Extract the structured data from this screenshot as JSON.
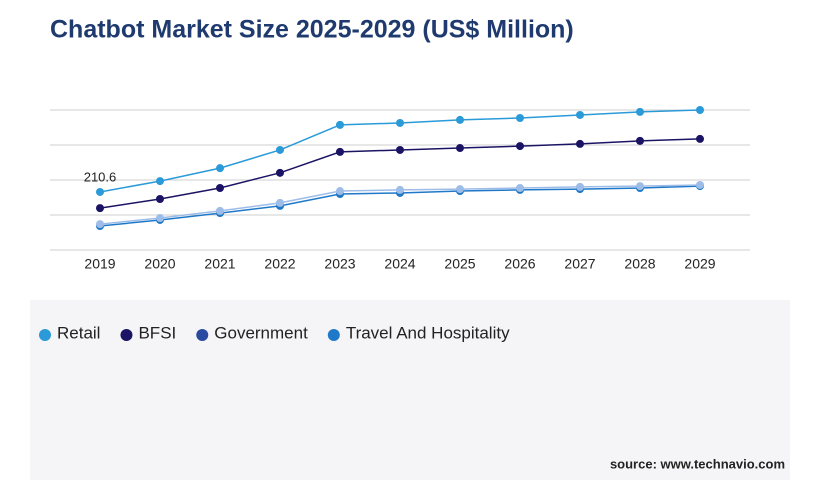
{
  "chart_data": {
    "type": "line",
    "title": "Chatbot Market Size 2025-2029 (US$ Million)",
    "source": "source: www.technavio.com",
    "categories": [
      "2019",
      "2020",
      "2021",
      "2022",
      "2023",
      "2024",
      "2025",
      "2026",
      "2027",
      "2028",
      "2029"
    ],
    "series": [
      {
        "name": "Retail",
        "color": "#2a9ad9",
        "values": [
          210.6,
          250,
          297,
          363,
          454,
          461,
          472,
          479,
          490,
          501,
          508
        ],
        "value_labels": [
          "210.6",
          null,
          null,
          null,
          null,
          null,
          null,
          null,
          null,
          null,
          null
        ]
      },
      {
        "name": "BFSI",
        "color": "#1b1464",
        "values": [
          152,
          185,
          225,
          280,
          356,
          363,
          370,
          377,
          385,
          396,
          403
        ]
      },
      {
        "name": "Government",
        "color": "#9dbde8",
        "values": [
          94,
          116,
          142,
          171,
          214,
          218,
          221,
          225,
          229,
          232,
          236
        ]
      },
      {
        "name": "Travel And Hospitality",
        "color": "#1f78c8",
        "values": [
          87,
          109,
          134,
          160,
          203,
          207,
          214,
          218,
          221,
          225,
          232
        ]
      }
    ],
    "legend_colors": [
      "#2a9ad9",
      "#1b1464",
      "#2a4aa0",
      "#1f78c8"
    ],
    "ylim": [
      0,
      508
    ],
    "gridlines": [
      0,
      127,
      254,
      381,
      508
    ],
    "grid": true
  }
}
